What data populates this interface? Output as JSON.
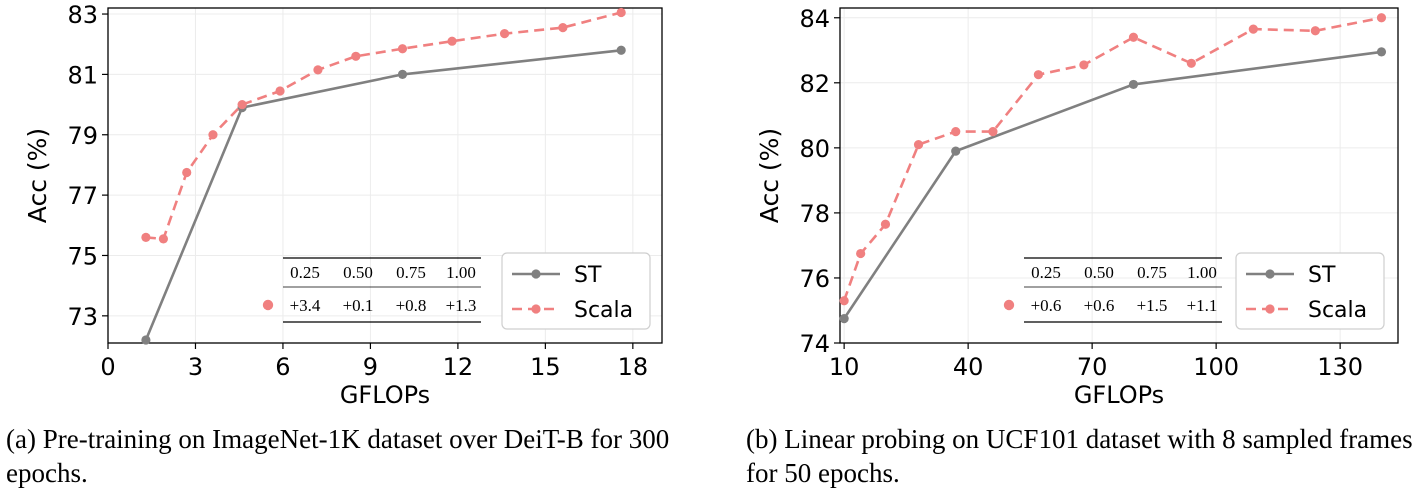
{
  "figures": [
    {
      "caption": "(a) Pre-training on ImageNet-1K dataset over DeiT-B for 300 epochs.",
      "inset_table": {
        "headers": [
          "0.25",
          "0.50",
          "0.75",
          "1.00"
        ],
        "values": [
          "+3.4",
          "+0.1",
          "+0.8",
          "+1.3"
        ]
      },
      "colors": {
        "st": "#808080",
        "scala": "#f08080"
      }
    },
    {
      "caption": "(b) Linear probing on UCF101 dataset with 8 sampled frames for 50 epochs.",
      "inset_table": {
        "headers": [
          "0.25",
          "0.50",
          "0.75",
          "1.00"
        ],
        "values": [
          "+0.6",
          "+0.6",
          "+1.5",
          "+1.1"
        ]
      },
      "colors": {
        "st": "#808080",
        "scala": "#f08080"
      }
    }
  ],
  "chart_data": [
    {
      "type": "line",
      "xlabel": "GFLOPs",
      "ylabel": "Acc (%)",
      "xlim": [
        0,
        19
      ],
      "ylim": [
        72.1,
        83.2
      ],
      "xticks": [
        0,
        3,
        6,
        9,
        12,
        15,
        18
      ],
      "yticks": [
        73,
        75,
        77,
        79,
        81,
        83
      ],
      "grid": true,
      "legend_position": "bottom-right",
      "series": [
        {
          "name": "ST",
          "style": "solid",
          "x": [
            1.3,
            4.6,
            10.1,
            17.6
          ],
          "y": [
            72.2,
            79.9,
            81.0,
            81.8
          ]
        },
        {
          "name": "Scala",
          "style": "dashed",
          "x": [
            1.3,
            1.9,
            2.7,
            3.6,
            4.6,
            5.9,
            7.2,
            8.5,
            10.1,
            11.8,
            13.6,
            15.6,
            17.6
          ],
          "y": [
            75.6,
            75.55,
            77.75,
            79.0,
            80.0,
            80.45,
            81.15,
            81.6,
            81.85,
            82.1,
            82.35,
            82.55,
            83.05
          ]
        }
      ]
    },
    {
      "type": "line",
      "xlabel": "GFLOPs",
      "ylabel": "Acc (%)",
      "xlim": [
        9,
        144
      ],
      "ylim": [
        74,
        84.3
      ],
      "xticks": [
        10,
        40,
        70,
        100,
        130
      ],
      "yticks": [
        74,
        76,
        78,
        80,
        82,
        84
      ],
      "grid": true,
      "legend_position": "bottom-right",
      "series": [
        {
          "name": "ST",
          "style": "solid",
          "x": [
            10,
            37,
            80,
            140
          ],
          "y": [
            74.75,
            79.9,
            81.95,
            82.95
          ]
        },
        {
          "name": "Scala",
          "style": "dashed",
          "x": [
            10,
            14,
            20,
            28,
            37,
            46,
            57,
            68,
            80,
            94,
            109,
            124,
            140
          ],
          "y": [
            75.3,
            76.75,
            77.65,
            80.1,
            80.5,
            80.5,
            82.25,
            82.55,
            83.4,
            82.6,
            83.65,
            83.6,
            84.0
          ]
        }
      ]
    }
  ]
}
